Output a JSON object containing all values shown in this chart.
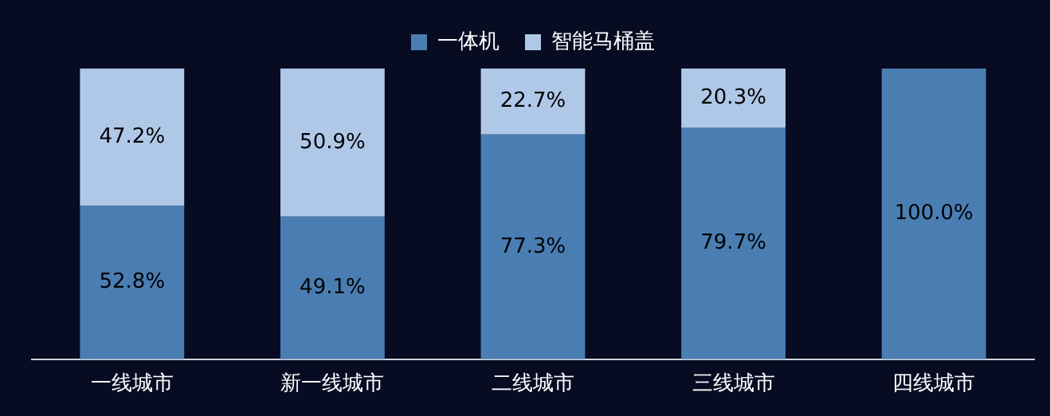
{
  "chart_data": {
    "type": "bar",
    "stacked": true,
    "legend": "top",
    "categories": [
      "一线城市",
      "新一线城市",
      "二线城市",
      "三线城市",
      "四线城市"
    ],
    "series": [
      {
        "name": "一体机",
        "color": "#4a7eb3",
        "values": [
          52.8,
          49.1,
          77.3,
          79.7,
          100
        ],
        "value_labels": [
          "52.8%",
          "49.1%",
          "77.3%",
          "79.7%",
          "100.0%"
        ]
      },
      {
        "name": "智能马桶盖",
        "color": "#b0c8e8",
        "values": [
          47.2,
          50.9,
          22.7,
          20.3,
          0
        ],
        "value_labels": [
          "47.2%",
          "50.9%",
          "22.7%",
          "20.3%",
          null
        ]
      }
    ]
  }
}
